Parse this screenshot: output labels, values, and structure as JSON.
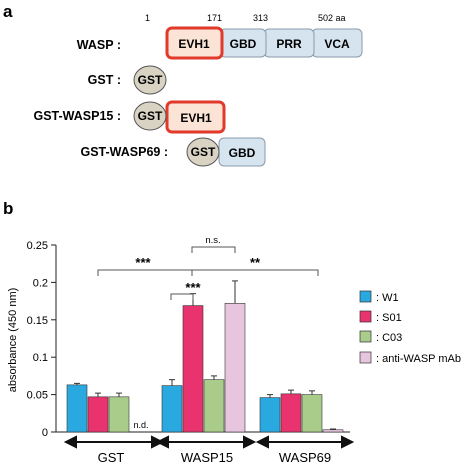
{
  "panel_a": {
    "label": "a",
    "positions": [
      "1",
      "171",
      "313",
      "502 aa"
    ],
    "constructs": [
      {
        "name": "WASP :",
        "domains": [
          "EVH1",
          "GBD",
          "PRR",
          "VCA"
        ]
      },
      {
        "name": "GST :",
        "domains": [
          "GST"
        ]
      },
      {
        "name": "GST-WASP15 :",
        "domains": [
          "GST",
          "EVH1"
        ]
      },
      {
        "name": "GST-WASP69 :",
        "domains": [
          "GST",
          "GBD"
        ]
      }
    ],
    "colors": {
      "evh1_fill": "#fbe3d6",
      "evh1_border": "#e23a2a",
      "blue_fill": "#d6e4f0",
      "gst_fill": "#d9d3c3"
    }
  },
  "panel_b": {
    "label": "b"
  },
  "chart_data": {
    "type": "bar",
    "categories": [
      "GST",
      "WASP15",
      "WASP69"
    ],
    "ylabel": "absorbance (450 nm)",
    "ylim": [
      0,
      0.25
    ],
    "yticks": [
      "0",
      "0.05",
      "0.1",
      "0.15",
      "0.2",
      "0.25"
    ],
    "series": [
      {
        "name": ": W1",
        "color": "#2aa9e0",
        "values": [
          0.063,
          0.062,
          0.046
        ],
        "errors": [
          0.002,
          0.008,
          0.004
        ]
      },
      {
        "name": ": S01",
        "color": "#e8336e",
        "values": [
          0.047,
          0.169,
          0.051
        ],
        "errors": [
          0.005,
          0.016,
          0.005
        ]
      },
      {
        "name": ": C03",
        "color": "#a9cc8b",
        "values": [
          0.047,
          0.07,
          0.05
        ],
        "errors": [
          0.005,
          0.005,
          0.005
        ]
      },
      {
        "name": ": anti-WASP mAb",
        "color": "#e8c5df",
        "values": [
          null,
          0.172,
          0.003
        ],
        "errors": [
          null,
          0.03,
          0.001
        ]
      }
    ],
    "annotations": {
      "nd": "n.d.",
      "sig_gst_wasp15": "***",
      "sig_ns": "n.s.",
      "sig_wasp15_wasp69": "**",
      "sig_w1_s01": "***"
    },
    "legend_position": "right"
  }
}
